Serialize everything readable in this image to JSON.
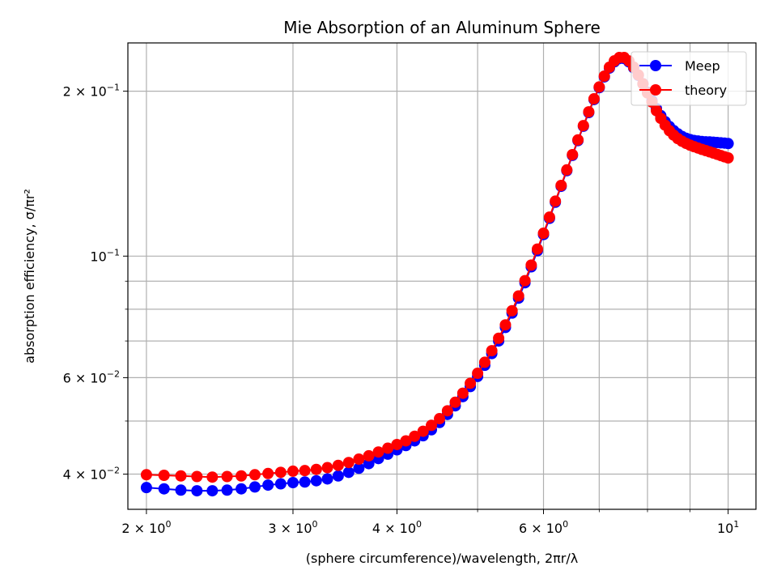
{
  "chart_data": {
    "type": "line",
    "title": "Mie Absorption of an Aluminum Sphere",
    "xlabel": "(sphere circumference)/wavelength, 2πr/λ",
    "ylabel": "absorption efficiency, σ/πr²",
    "xscale": "log",
    "yscale": "log",
    "xlim": [
      1.9,
      10.8
    ],
    "ylim": [
      0.0345,
      0.245
    ],
    "grid": true,
    "legend_position": "top-right",
    "xticks": [
      {
        "value": 2,
        "base": "2 × 10",
        "exp": "0"
      },
      {
        "value": 3,
        "base": "3 × 10",
        "exp": "0"
      },
      {
        "value": 4,
        "base": "4 × 10",
        "exp": "0"
      },
      {
        "value": 6,
        "base": "6 × 10",
        "exp": "0"
      },
      {
        "value": 10,
        "base": "10",
        "exp": "1"
      }
    ],
    "xminor_grid": [
      5,
      7,
      8,
      9
    ],
    "yticks": [
      {
        "value": 0.04,
        "base": "4 × 10",
        "exp": "−2"
      },
      {
        "value": 0.06,
        "base": "6 × 10",
        "exp": "−2"
      },
      {
        "value": 0.1,
        "base": "10",
        "exp": "−1"
      },
      {
        "value": 0.2,
        "base": "2 × 10",
        "exp": "−1"
      }
    ],
    "yminor_grid": [
      0.05,
      0.07,
      0.08,
      0.09
    ],
    "series": [
      {
        "name": "Meep",
        "color": "#0000ff",
        "points": [
          [
            2.0,
            0.0378
          ],
          [
            2.1,
            0.0376
          ],
          [
            2.2,
            0.0374
          ],
          [
            2.3,
            0.0373
          ],
          [
            2.4,
            0.0373
          ],
          [
            2.5,
            0.0374
          ],
          [
            2.6,
            0.0376
          ],
          [
            2.7,
            0.0379
          ],
          [
            2.8,
            0.0382
          ],
          [
            2.9,
            0.0384
          ],
          [
            3.0,
            0.0386
          ],
          [
            3.1,
            0.0387
          ],
          [
            3.2,
            0.0389
          ],
          [
            3.3,
            0.0392
          ],
          [
            3.4,
            0.0397
          ],
          [
            3.5,
            0.0403
          ],
          [
            3.6,
            0.041
          ],
          [
            3.7,
            0.0418
          ],
          [
            3.8,
            0.0427
          ],
          [
            3.9,
            0.0435
          ],
          [
            4.0,
            0.0443
          ],
          [
            4.1,
            0.0451
          ],
          [
            4.2,
            0.046
          ],
          [
            4.3,
            0.047
          ],
          [
            4.4,
            0.0482
          ],
          [
            4.5,
            0.0497
          ],
          [
            4.6,
            0.0514
          ],
          [
            4.7,
            0.0533
          ],
          [
            4.8,
            0.0554
          ],
          [
            4.9,
            0.0578
          ],
          [
            5.0,
            0.0603
          ],
          [
            5.1,
            0.0632
          ],
          [
            5.2,
            0.0664
          ],
          [
            5.3,
            0.07
          ],
          [
            5.4,
            0.0741
          ],
          [
            5.5,
            0.0787
          ],
          [
            5.6,
            0.0838
          ],
          [
            5.7,
            0.0894
          ],
          [
            5.8,
            0.0956
          ],
          [
            5.9,
            0.1023
          ],
          [
            6.0,
            0.1095
          ],
          [
            6.1,
            0.1172
          ],
          [
            6.2,
            0.1254
          ],
          [
            6.3,
            0.1341
          ],
          [
            6.4,
            0.1432
          ],
          [
            6.5,
            0.1527
          ],
          [
            6.6,
            0.1625
          ],
          [
            6.7,
            0.1726
          ],
          [
            6.8,
            0.1828
          ],
          [
            6.9,
            0.1931
          ],
          [
            7.0,
            0.203
          ],
          [
            7.1,
            0.2124
          ],
          [
            7.2,
            0.2204
          ],
          [
            7.3,
            0.2263
          ],
          [
            7.4,
            0.2294
          ],
          [
            7.5,
            0.2294
          ],
          [
            7.6,
            0.2262
          ],
          [
            7.7,
            0.2206
          ],
          [
            7.8,
            0.2138
          ],
          [
            7.9,
            0.2064
          ],
          [
            8.0,
            0.1991
          ],
          [
            8.1,
            0.1922
          ],
          [
            8.2,
            0.1859
          ],
          [
            8.3,
            0.1805
          ],
          [
            8.4,
            0.176
          ],
          [
            8.5,
            0.1724
          ],
          [
            8.6,
            0.1695
          ],
          [
            8.7,
            0.1672
          ],
          [
            8.8,
            0.1654
          ],
          [
            8.9,
            0.1641
          ],
          [
            9.0,
            0.1632
          ],
          [
            9.1,
            0.1626
          ],
          [
            9.2,
            0.1622
          ],
          [
            9.3,
            0.1619
          ],
          [
            9.4,
            0.1617
          ],
          [
            9.5,
            0.1616
          ],
          [
            9.6,
            0.1614
          ],
          [
            9.7,
            0.1612
          ],
          [
            9.8,
            0.161
          ],
          [
            9.9,
            0.1608
          ],
          [
            10.0,
            0.1605
          ]
        ]
      },
      {
        "name": "theory",
        "color": "#ff0000",
        "points": [
          [
            2.0,
            0.0399
          ],
          [
            2.1,
            0.0398
          ],
          [
            2.2,
            0.0397
          ],
          [
            2.3,
            0.0396
          ],
          [
            2.4,
            0.0395
          ],
          [
            2.5,
            0.0396
          ],
          [
            2.6,
            0.0397
          ],
          [
            2.7,
            0.0399
          ],
          [
            2.8,
            0.0401
          ],
          [
            2.9,
            0.0403
          ],
          [
            3.0,
            0.0405
          ],
          [
            3.1,
            0.0406
          ],
          [
            3.2,
            0.0408
          ],
          [
            3.3,
            0.0411
          ],
          [
            3.4,
            0.0415
          ],
          [
            3.5,
            0.042
          ],
          [
            3.6,
            0.0426
          ],
          [
            3.7,
            0.0432
          ],
          [
            3.8,
            0.0439
          ],
          [
            3.9,
            0.0446
          ],
          [
            4.0,
            0.0453
          ],
          [
            4.1,
            0.046
          ],
          [
            4.2,
            0.0469
          ],
          [
            4.3,
            0.0479
          ],
          [
            4.4,
            0.0491
          ],
          [
            4.5,
            0.0505
          ],
          [
            4.6,
            0.0522
          ],
          [
            4.7,
            0.0541
          ],
          [
            4.8,
            0.0562
          ],
          [
            4.9,
            0.0586
          ],
          [
            5.0,
            0.0611
          ],
          [
            5.1,
            0.064
          ],
          [
            5.2,
            0.0672
          ],
          [
            5.3,
            0.0708
          ],
          [
            5.4,
            0.0749
          ],
          [
            5.5,
            0.0795
          ],
          [
            5.6,
            0.0846
          ],
          [
            5.7,
            0.0902
          ],
          [
            5.8,
            0.0963
          ],
          [
            5.9,
            0.103
          ],
          [
            6.0,
            0.1101
          ],
          [
            6.1,
            0.1178
          ],
          [
            6.2,
            0.126
          ],
          [
            6.3,
            0.1346
          ],
          [
            6.4,
            0.1437
          ],
          [
            6.5,
            0.1532
          ],
          [
            6.6,
            0.163
          ],
          [
            6.7,
            0.1731
          ],
          [
            6.8,
            0.1834
          ],
          [
            6.9,
            0.1937
          ],
          [
            7.0,
            0.2036
          ],
          [
            7.1,
            0.2131
          ],
          [
            7.2,
            0.2212
          ],
          [
            7.3,
            0.2272
          ],
          [
            7.4,
            0.2304
          ],
          [
            7.5,
            0.2304
          ],
          [
            7.6,
            0.2271
          ],
          [
            7.7,
            0.2213
          ],
          [
            7.8,
            0.2141
          ],
          [
            7.9,
            0.2063
          ],
          [
            8.0,
            0.1985
          ],
          [
            8.1,
            0.1911
          ],
          [
            8.2,
            0.1843
          ],
          [
            8.3,
            0.1784
          ],
          [
            8.4,
            0.1734
          ],
          [
            8.5,
            0.1694
          ],
          [
            8.6,
            0.1663
          ],
          [
            8.7,
            0.1639
          ],
          [
            8.8,
            0.1621
          ],
          [
            8.9,
            0.1606
          ],
          [
            9.0,
            0.1594
          ],
          [
            9.1,
            0.1584
          ],
          [
            9.2,
            0.1575
          ],
          [
            9.3,
            0.1566
          ],
          [
            9.4,
            0.1558
          ],
          [
            9.5,
            0.155
          ],
          [
            9.6,
            0.1542
          ],
          [
            9.7,
            0.1534
          ],
          [
            9.8,
            0.1526
          ],
          [
            9.9,
            0.1518
          ],
          [
            10.0,
            0.1511
          ]
        ]
      }
    ]
  }
}
